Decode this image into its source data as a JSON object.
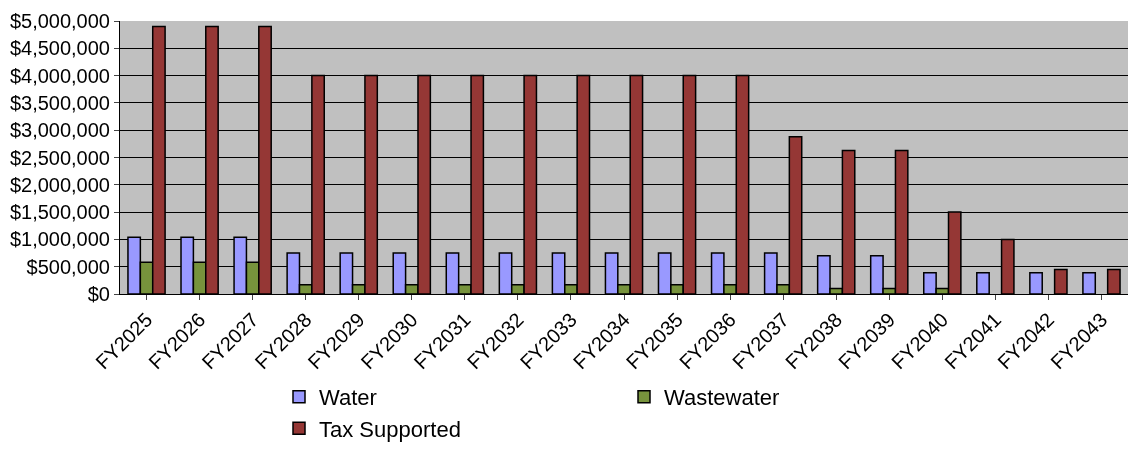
{
  "chart_data": {
    "type": "bar",
    "categories": [
      "FY2025",
      "FY2026",
      "FY2027",
      "FY2028",
      "FY2029",
      "FY2030",
      "FY2031",
      "FY2032",
      "FY2033",
      "FY2034",
      "FY2035",
      "FY2036",
      "FY2037",
      "FY2038",
      "FY2039",
      "FY2040",
      "FY2041",
      "FY2042",
      "FY2043"
    ],
    "series": [
      {
        "name": "Water",
        "color": "#9999ff",
        "values": [
          1040000,
          1040000,
          1040000,
          750000,
          750000,
          750000,
          750000,
          750000,
          750000,
          750000,
          750000,
          750000,
          750000,
          700000,
          700000,
          390000,
          390000,
          390000,
          390000
        ]
      },
      {
        "name": "Wastewater",
        "color": "#77933c",
        "values": [
          580000,
          580000,
          580000,
          170000,
          170000,
          170000,
          170000,
          170000,
          170000,
          170000,
          170000,
          170000,
          170000,
          100000,
          100000,
          100000,
          null,
          null,
          null
        ]
      },
      {
        "name": "Tax Supported",
        "color": "#953735",
        "values": [
          4900000,
          4900000,
          4900000,
          4000000,
          4000000,
          4000000,
          4000000,
          4000000,
          4000000,
          4000000,
          4000000,
          4000000,
          2880000,
          2630000,
          2630000,
          1500000,
          1000000,
          450000,
          450000
        ]
      }
    ],
    "ylim": [
      0,
      5000000
    ],
    "yticks": [
      {
        "value": 0,
        "label": "$0"
      },
      {
        "value": 500000,
        "label": "$500,000"
      },
      {
        "value": 1000000,
        "label": "$1,000,000"
      },
      {
        "value": 1500000,
        "label": "$1,500,000"
      },
      {
        "value": 2000000,
        "label": "$2,000,000"
      },
      {
        "value": 2500000,
        "label": "$2,500,000"
      },
      {
        "value": 3000000,
        "label": "$3,000,000"
      },
      {
        "value": 3500000,
        "label": "$3,500,000"
      },
      {
        "value": 4000000,
        "label": "$4,000,000"
      },
      {
        "value": 4500000,
        "label": "$4,500,000"
      },
      {
        "value": 5000000,
        "label": "$5,000,000"
      }
    ],
    "grid": "y",
    "legend": "bottom"
  }
}
